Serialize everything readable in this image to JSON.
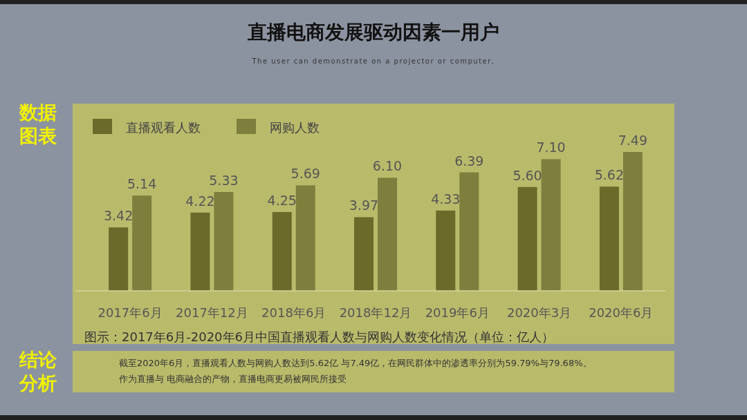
{
  "chart_data": {
    "type": "bar",
    "title": "直播电商发展驱动因素一用户",
    "subtitle": "The user can demonstrate on a projector or computer,",
    "categories": [
      "2017年6月",
      "2017年12月",
      "2018年6月",
      "2018年12月",
      "2019年6月",
      "2020年3月",
      "2020年6月"
    ],
    "series": [
      {
        "name": "直播观看人数",
        "color": "#6b6a2a",
        "values": [
          3.42,
          4.22,
          4.25,
          3.97,
          4.33,
          5.6,
          5.62
        ],
        "value_labels": [
          "3.42",
          "4.22",
          "4.25",
          "3.97",
          "4.33",
          "5.60",
          "5.62"
        ]
      },
      {
        "name": "网购人数",
        "color": "#7e7e3d",
        "values": [
          5.14,
          5.33,
          5.69,
          6.1,
          6.39,
          7.1,
          7.49
        ],
        "value_labels": [
          "5.14",
          "5.33",
          "5.69",
          "6.10",
          "6.39",
          "7.10",
          "7.49"
        ]
      }
    ],
    "legend": "top left",
    "annotations": [
      "数据图表",
      "图示：2017年6月-2020年6月中国直播观看人数与网购人数变化情况（单位：亿人）",
      "结论分析",
      "截至2020年6月，直播观看人数与网购人数达到5.62亿 与7.49亿，在网民群体中的渗透率分别为59.79%与79.68%。作为直播与 电商融合的产物，直播电商更易被网民所接受"
    ]
  }
}
